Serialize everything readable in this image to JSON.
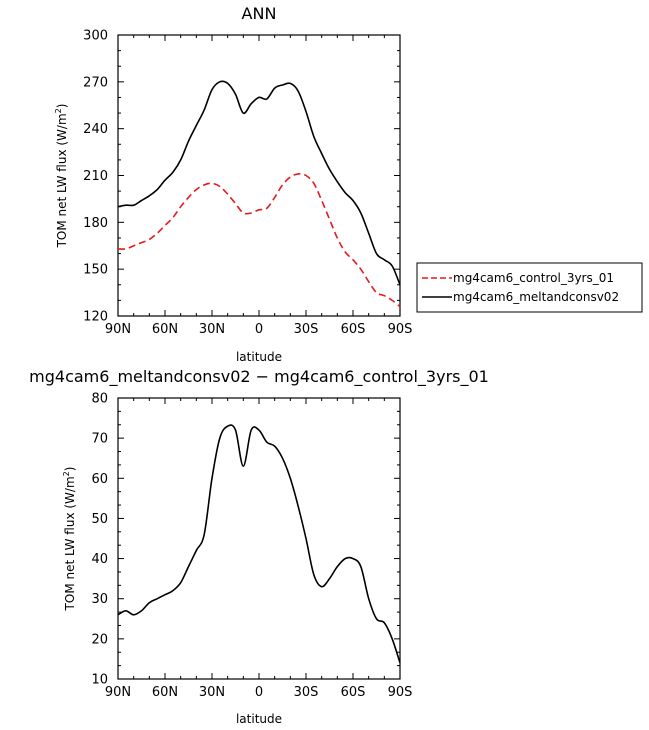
{
  "chart_data": [
    {
      "type": "line",
      "title": "ANN",
      "xlabel": "latitude",
      "ylabel": "TOM net LW flux (W/m²)",
      "ylabel_text": "TOM net LW flux (W/m",
      "ylabel_sup": "2",
      "ylabel_end": ")",
      "xlim": [
        -90,
        90
      ],
      "ylim": [
        120,
        300
      ],
      "x_ticks": [
        -90,
        -60,
        -30,
        0,
        30,
        60,
        90
      ],
      "x_tick_labels": [
        "90N",
        "60N",
        "30N",
        "0",
        "30S",
        "60S",
        "90S"
      ],
      "y_ticks": [
        120,
        150,
        180,
        210,
        240,
        270,
        300
      ],
      "y_tick_labels": [
        "120",
        "150",
        "180",
        "210",
        "240",
        "270",
        "300"
      ],
      "legend_position": "right",
      "series": [
        {
          "name": "mg4cam6_control_3yrs_01",
          "color": "#e41a1c",
          "dash": "dashed",
          "x": [
            -90,
            -85,
            -80,
            -75,
            -70,
            -65,
            -60,
            -55,
            -50,
            -45,
            -40,
            -35,
            -30,
            -25,
            -20,
            -15,
            -10,
            -5,
            0,
            5,
            10,
            15,
            20,
            25,
            30,
            35,
            40,
            45,
            50,
            55,
            60,
            65,
            70,
            75,
            80,
            85,
            90
          ],
          "y": [
            163,
            163,
            165,
            167,
            169,
            173,
            178,
            183,
            190,
            196,
            201,
            204,
            205,
            203,
            198,
            192,
            186,
            186,
            188,
            189,
            196,
            204,
            209,
            211,
            210,
            205,
            194,
            182,
            170,
            161,
            156,
            150,
            142,
            135,
            133,
            130,
            126
          ]
        },
        {
          "name": "mg4cam6_meltandconsv02",
          "color": "#000000",
          "dash": "solid",
          "x": [
            -90,
            -85,
            -80,
            -75,
            -70,
            -65,
            -60,
            -55,
            -50,
            -45,
            -40,
            -35,
            -30,
            -25,
            -20,
            -15,
            -10,
            -5,
            0,
            5,
            10,
            15,
            20,
            25,
            30,
            35,
            40,
            45,
            50,
            55,
            60,
            65,
            70,
            75,
            80,
            85,
            90
          ],
          "y": [
            190,
            191,
            191,
            194,
            197,
            201,
            207,
            212,
            220,
            232,
            242,
            252,
            265,
            270,
            269,
            262,
            250,
            256,
            260,
            259,
            266,
            268,
            269,
            264,
            251,
            235,
            224,
            214,
            206,
            199,
            194,
            186,
            173,
            160,
            156,
            152,
            140
          ]
        }
      ]
    },
    {
      "type": "line",
      "title": "mg4cam6_meltandconsv02 − mg4cam6_control_3yrs_01",
      "xlabel": "latitude",
      "ylabel": "TOM net LW flux (W/m²)",
      "ylabel_text": "TOM net LW flux (W/m",
      "ylabel_sup": "2",
      "ylabel_end": ")",
      "xlim": [
        -90,
        90
      ],
      "ylim": [
        10,
        80
      ],
      "x_ticks": [
        -90,
        -60,
        -30,
        0,
        30,
        60,
        90
      ],
      "x_tick_labels": [
        "90N",
        "60N",
        "30N",
        "0",
        "30S",
        "60S",
        "90S"
      ],
      "y_ticks": [
        10,
        20,
        30,
        40,
        50,
        60,
        70,
        80
      ],
      "y_tick_labels": [
        "10",
        "20",
        "30",
        "40",
        "50",
        "60",
        "70",
        "80"
      ],
      "series": [
        {
          "color": "#000000",
          "dash": "solid",
          "x": [
            -90,
            -85,
            -80,
            -75,
            -70,
            -65,
            -60,
            -55,
            -50,
            -45,
            -40,
            -35,
            -30,
            -25,
            -20,
            -15,
            -10,
            -5,
            0,
            5,
            10,
            15,
            20,
            25,
            30,
            35,
            40,
            45,
            50,
            55,
            60,
            65,
            70,
            75,
            80,
            85,
            90
          ],
          "y": [
            26,
            27,
            26,
            27,
            29,
            30,
            31,
            32,
            34,
            38,
            42,
            46,
            60,
            70,
            73,
            72,
            63,
            72,
            72,
            69,
            68,
            65,
            60,
            53,
            45,
            36,
            33,
            35,
            38,
            40,
            40,
            38,
            30,
            25,
            24,
            20,
            14
          ]
        }
      ]
    }
  ]
}
